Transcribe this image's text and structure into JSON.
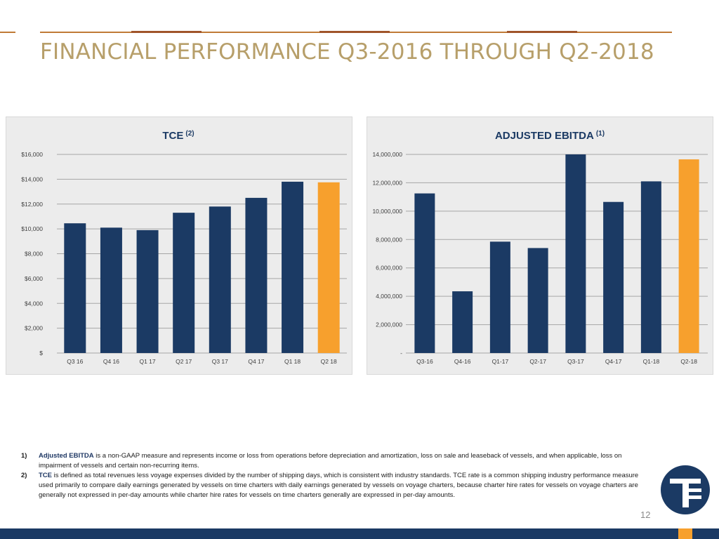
{
  "slide": {
    "title": "FINANCIAL PERFORMANCE Q3-2016 THROUGH Q2-2018",
    "page_number": "12"
  },
  "colors": {
    "title": "#b79f6a",
    "bar_primary": "#1b3a64",
    "bar_highlight": "#f7a02d",
    "panel_bg": "#ececec",
    "bottom_bar": "#1b3a64",
    "accent": "#f7a02d"
  },
  "footnotes": [
    {
      "num": "1)",
      "term": "Adjusted EBITDA",
      "text": " is a non-GAAP measure and represents income or loss from operations before depreciation and amortization, loss on sale and leaseback of vessels, and when applicable, loss on impairment of vessels and certain non-recurring items."
    },
    {
      "num": "2)",
      "term": "TCE",
      "text": " is defined as total revenues less voyage expenses divided by the number of shipping days, which is consistent with industry standards. TCE rate is a common shipping industry performance measure used primarily to compare daily earnings generated by vessels on time charters with daily earnings generated by vessels on voyage charters, because charter hire rates for vessels on voyage charters are generally not expressed in per-day amounts while charter hire rates for vessels on time charters generally are expressed in per-day amounts."
    }
  ],
  "chart_data": [
    {
      "type": "bar",
      "title": "TCE",
      "title_sup": "(2)",
      "categories": [
        "Q3 16",
        "Q4 16",
        "Q1 17",
        "Q2 17",
        "Q3 17",
        "Q4 17",
        "Q1 18",
        "Q2 18"
      ],
      "values": [
        10450,
        10100,
        9900,
        11300,
        11800,
        12500,
        13800,
        13750
      ],
      "highlight_index": 7,
      "ylim": [
        0,
        16000
      ],
      "yticks": [
        0,
        2000,
        4000,
        6000,
        8000,
        10000,
        12000,
        14000,
        16000
      ],
      "ytick_labels": [
        "$",
        "$2,000",
        "$4,000",
        "$6,000",
        "$8,000",
        "$10,000",
        "$12,000",
        "$14,000",
        "$16,000"
      ],
      "grid": true
    },
    {
      "type": "bar",
      "title": "ADJUSTED EBITDA",
      "title_sup": "(1)",
      "categories": [
        "Q3-16",
        "Q4-16",
        "Q1-17",
        "Q2-17",
        "Q3-17",
        "Q4-17",
        "Q1-18",
        "Q2-18"
      ],
      "values": [
        11250000,
        4350000,
        7850000,
        7400000,
        14000000,
        10650000,
        12100000,
        13650000
      ],
      "highlight_index": 7,
      "ylim": [
        0,
        14000000
      ],
      "yticks": [
        0,
        2000000,
        4000000,
        6000000,
        8000000,
        10000000,
        12000000,
        14000000
      ],
      "ytick_labels": [
        "-",
        "2,000,000",
        "4,000,000",
        "6,000,000",
        "8,000,000",
        "10,000,000",
        "12,000,000",
        "14,000,000"
      ],
      "grid": true
    }
  ]
}
